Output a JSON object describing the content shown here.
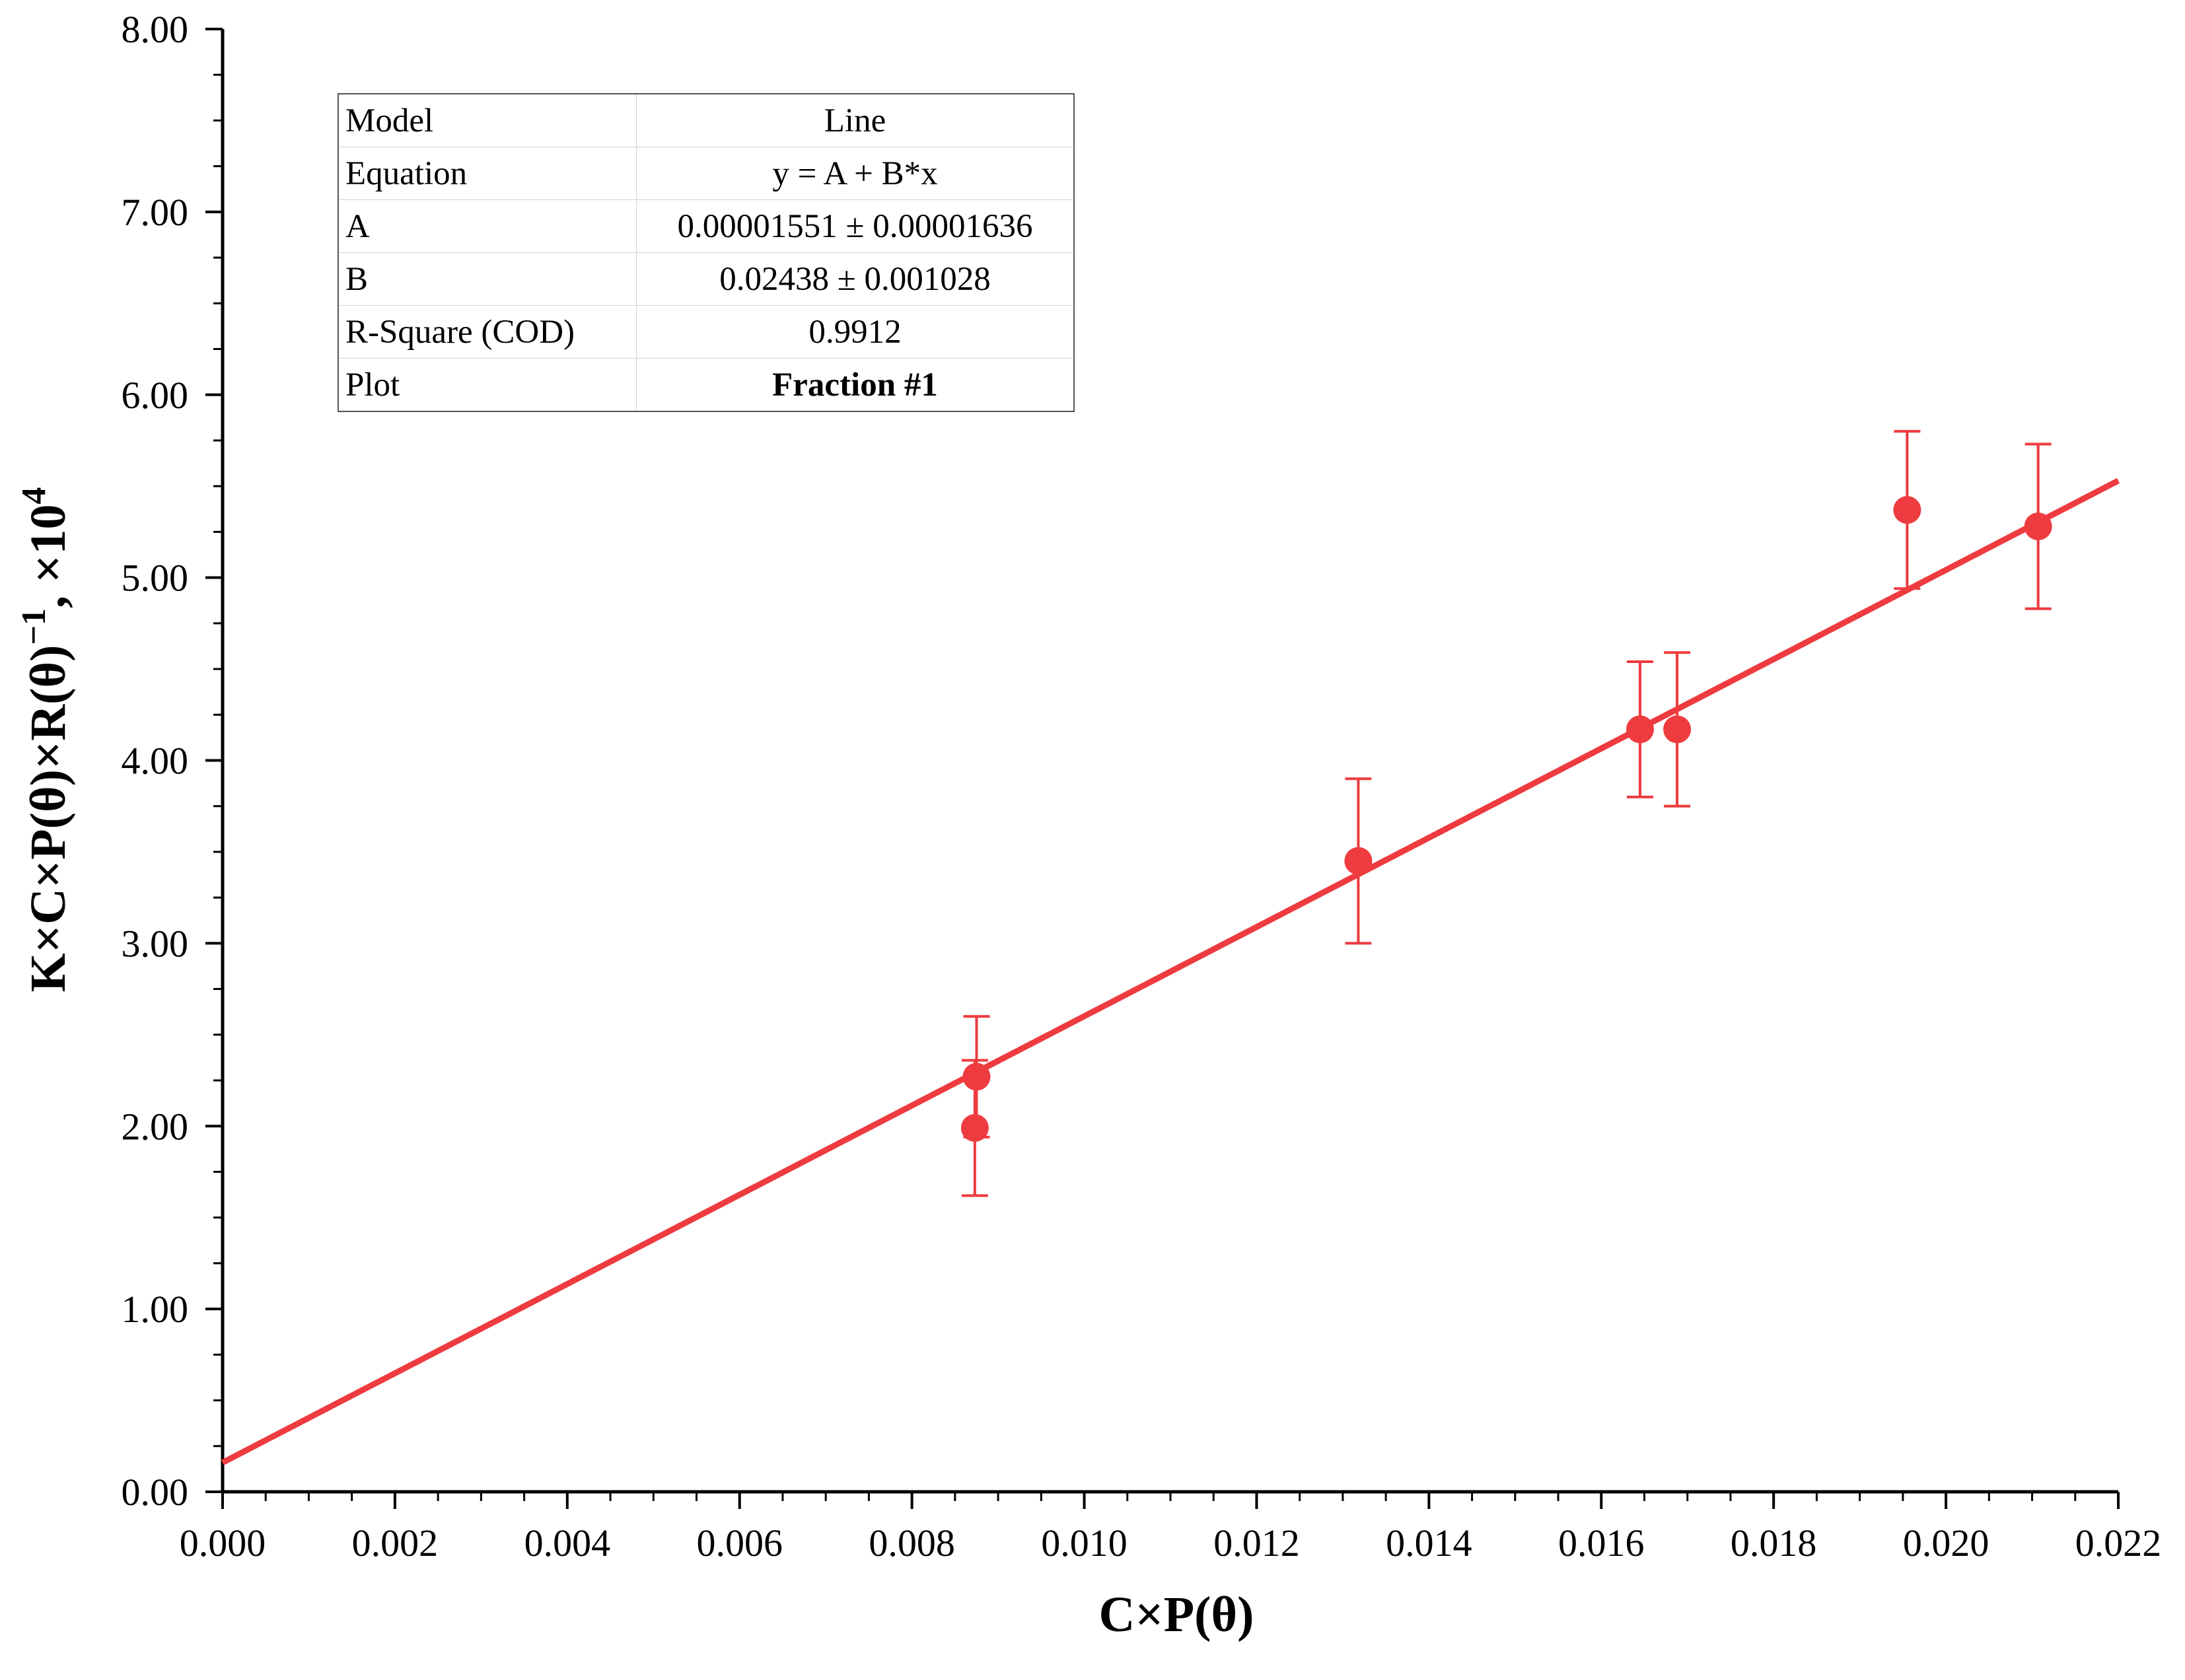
{
  "chart_data": {
    "type": "scatter",
    "xlabel": "C×P(θ)",
    "ylabel_main": "K×C×P(θ)×R(θ)",
    "ylabel_sup1": "−1",
    "ylabel_tail": ", ×10",
    "ylabel_sup2": "4",
    "xlim": [
      0.0,
      0.022
    ],
    "ylim": [
      0.0,
      8.0
    ],
    "xticks": [
      0.0,
      0.002,
      0.004,
      0.006,
      0.008,
      0.01,
      0.012,
      0.014,
      0.016,
      0.018,
      0.02,
      0.022
    ],
    "xtick_labels": [
      "0.000",
      "0.002",
      "0.004",
      "0.006",
      "0.008",
      "0.010",
      "0.012",
      "0.014",
      "0.016",
      "0.018",
      "0.020",
      "0.022"
    ],
    "yticks": [
      0,
      1,
      2,
      3,
      4,
      5,
      6,
      7,
      8
    ],
    "ytick_labels": [
      "0.00",
      "1.00",
      "2.00",
      "3.00",
      "4.00",
      "5.00",
      "6.00",
      "7.00",
      "8.00"
    ],
    "series": [
      {
        "name": "Fraction #1",
        "color": "#ee3b3f",
        "points": [
          {
            "x": 0.00875,
            "y": 2.27,
            "err": 0.33
          },
          {
            "x": 0.00873,
            "y": 1.99,
            "err": 0.37
          },
          {
            "x": 0.01318,
            "y": 3.45,
            "err": 0.45
          },
          {
            "x": 0.01645,
            "y": 4.17,
            "err": 0.37
          },
          {
            "x": 0.01688,
            "y": 4.17,
            "err": 0.42
          },
          {
            "x": 0.01955,
            "y": 5.37,
            "err": 0.43
          },
          {
            "x": 0.02107,
            "y": 5.28,
            "err": 0.45
          }
        ]
      }
    ],
    "fit_line": {
      "color": "#ee3b3f",
      "x": [
        0.0,
        0.022
      ],
      "y": [
        0.16,
        5.53
      ]
    }
  },
  "fit_table": [
    {
      "key": "Model",
      "value": "Line",
      "bold": false
    },
    {
      "key": "Equation",
      "value": "y = A + B*x",
      "bold": false
    },
    {
      "key": "A",
      "value": "0.00001551 ± 0.00001636",
      "bold": false
    },
    {
      "key": "B",
      "value": "0.02438 ± 0.001028",
      "bold": false
    },
    {
      "key": "R-Square (COD)",
      "value": "0.9912",
      "bold": false
    },
    {
      "key": "Plot",
      "value": "Fraction #1",
      "bold": true
    }
  ]
}
